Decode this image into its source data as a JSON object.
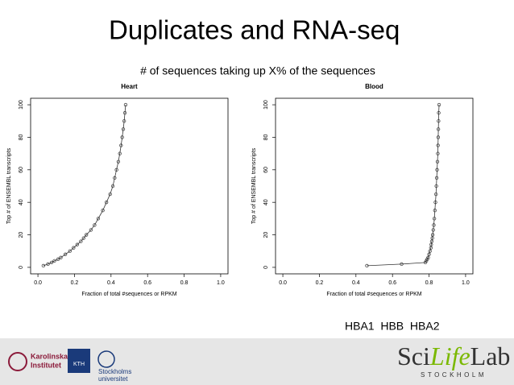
{
  "slide": {
    "title": "Duplicates and RNA-seq",
    "subtitle": "# of sequences taking up X% of the sequences",
    "annotation": "HBA1  HBB  HBA2"
  },
  "footer": {
    "karolinska": [
      "Karolinska",
      "Institutet"
    ],
    "kth": "KTH",
    "stockholms": [
      "Stockholms",
      "universitet"
    ],
    "scilifelab": [
      "Sci",
      "Life",
      "Lab"
    ],
    "city": "STOCKHOLM"
  },
  "chart_data": [
    {
      "type": "line",
      "title": "Heart",
      "xlabel": "Fraction of total #sequences or RPKM",
      "ylabel": "Top # of ENSEMBL transcripts",
      "color": "#333333",
      "markers": true,
      "x": [
        0.03,
        0.055,
        0.075,
        0.09,
        0.11,
        0.125,
        0.15,
        0.175,
        0.195,
        0.215,
        0.235,
        0.25,
        0.265,
        0.29,
        0.31,
        0.33,
        0.355,
        0.375,
        0.395,
        0.41,
        0.42,
        0.43,
        0.44,
        0.448,
        0.455,
        0.461,
        0.467,
        0.472,
        0.476,
        0.48
      ],
      "values": [
        1,
        2,
        3,
        4,
        5,
        6,
        8,
        10,
        12,
        14,
        16,
        18,
        20,
        23,
        26,
        30,
        35,
        40,
        45,
        50,
        55,
        60,
        65,
        70,
        75,
        80,
        85,
        90,
        95,
        100
      ],
      "xlim": [
        -0.04,
        1.04
      ],
      "ylim": [
        -4,
        104
      ],
      "xticks": [
        {
          "value": 0,
          "label": "0.0"
        },
        {
          "value": 0.2,
          "label": "0.2"
        },
        {
          "value": 0.4,
          "label": "0.4"
        },
        {
          "value": 0.6,
          "label": "0.6"
        },
        {
          "value": 0.8,
          "label": "0.8"
        },
        {
          "value": 1,
          "label": "1.0"
        }
      ],
      "yticks": [
        0,
        20,
        40,
        60,
        80,
        100
      ]
    },
    {
      "type": "line",
      "title": "Blood",
      "xlabel": "Fraction of total #sequences or RPKM",
      "ylabel": "Top # of ENSEMBL transcripts",
      "color": "#333333",
      "markers": true,
      "x": [
        0.46,
        0.65,
        0.78,
        0.785,
        0.79,
        0.795,
        0.8,
        0.805,
        0.81,
        0.812,
        0.815,
        0.818,
        0.82,
        0.823,
        0.826,
        0.829,
        0.832,
        0.835,
        0.838,
        0.84,
        0.842,
        0.844,
        0.846,
        0.848,
        0.849,
        0.85,
        0.851,
        0.852,
        0.853,
        0.855
      ],
      "values": [
        1,
        2,
        3,
        4,
        5,
        6,
        8,
        10,
        12,
        14,
        16,
        18,
        20,
        23,
        26,
        30,
        35,
        40,
        45,
        50,
        55,
        60,
        65,
        70,
        75,
        80,
        85,
        90,
        95,
        100
      ],
      "xlim": [
        -0.04,
        1.04
      ],
      "ylim": [
        -4,
        104
      ],
      "xticks": [
        {
          "value": 0,
          "label": "0.0"
        },
        {
          "value": 0.2,
          "label": "0.2"
        },
        {
          "value": 0.4,
          "label": "0.4"
        },
        {
          "value": 0.6,
          "label": "0.6"
        },
        {
          "value": 0.8,
          "label": "0.8"
        },
        {
          "value": 1,
          "label": "1.0"
        }
      ],
      "yticks": [
        0,
        20,
        40,
        60,
        80,
        100
      ]
    }
  ]
}
